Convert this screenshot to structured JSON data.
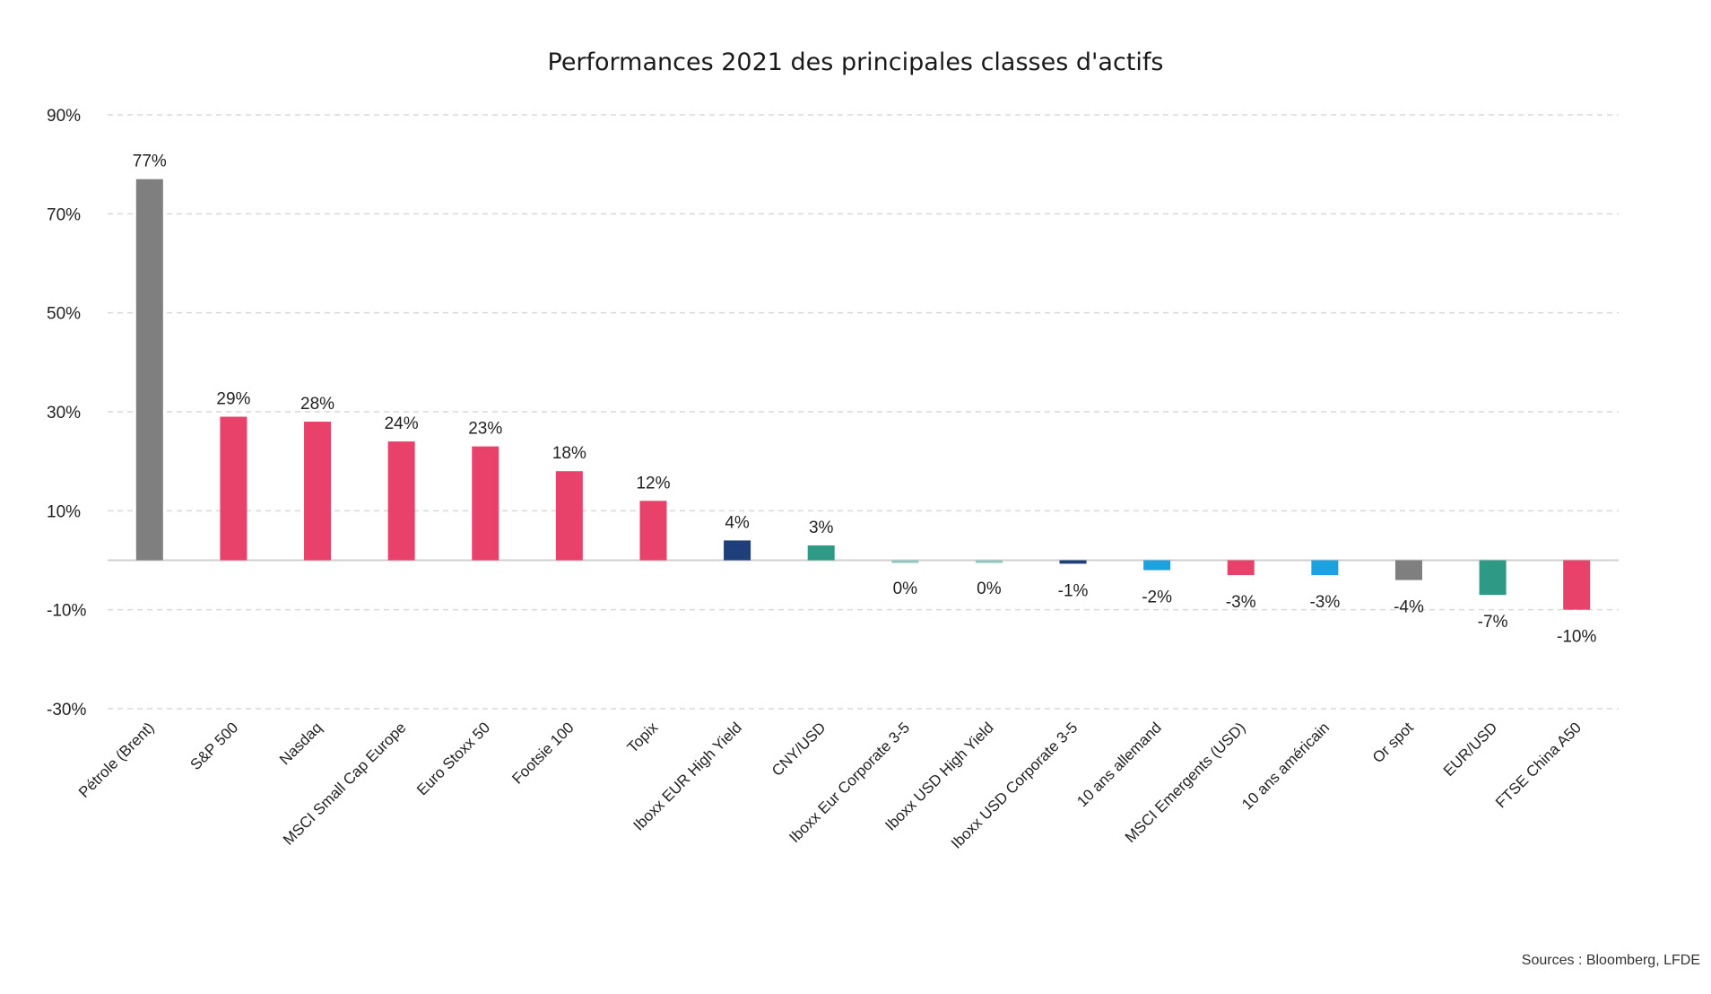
{
  "chart_data": {
    "type": "bar",
    "title": "Performances 2021 des principales classes d'actifs",
    "source": "Sources : Bloomberg, LFDE",
    "xlabel": "",
    "ylabel": "",
    "ylim": [
      -30,
      90
    ],
    "yticks": [
      90,
      70,
      50,
      30,
      10,
      -10,
      -30
    ],
    "ytick_labels": [
      "90%",
      "70%",
      "50%",
      "30%",
      "10%",
      "-10%",
      "-30%"
    ],
    "grid": true,
    "legend": "none",
    "categories": [
      "Pétrole (Brent)",
      "S&P 500",
      "Nasdaq",
      "MSCI Small Cap Europe",
      "Euro Stoxx 50",
      "Footsie 100",
      "Topix",
      "Iboxx EUR High Yield",
      "CNY/USD",
      "Iboxx Eur Corporate 3-5",
      "Iboxx USD High Yield",
      "Iboxx USD Corporate 3-5",
      "10 ans allemand",
      "MSCI Emergents (USD)",
      "10 ans américain",
      "Or spot",
      "EUR/USD",
      "FTSE China A50"
    ],
    "values": [
      77,
      29,
      28,
      24,
      23,
      18,
      12,
      4,
      3,
      -0.3,
      -0.3,
      -0.7,
      -2,
      -3,
      -3,
      -4,
      -7,
      -10
    ],
    "data_labels": [
      "77%",
      "29%",
      "28%",
      "24%",
      "23%",
      "18%",
      "12%",
      "4%",
      "3%",
      "0%",
      "0%",
      "-1%",
      "-2%",
      "-3%",
      "-3%",
      "-4%",
      "-7%",
      "-10%"
    ],
    "colors": [
      "#7f7f7f",
      "#e8426a",
      "#e8426a",
      "#e8426a",
      "#e8426a",
      "#e8426a",
      "#e8426a",
      "#1f3f7a",
      "#2e9a86",
      "#8fc7c0",
      "#8fc7c0",
      "#1f3f7a",
      "#1da1e2",
      "#e8426a",
      "#1da1e2",
      "#7f7f7f",
      "#2e9a86",
      "#e8426a"
    ]
  }
}
